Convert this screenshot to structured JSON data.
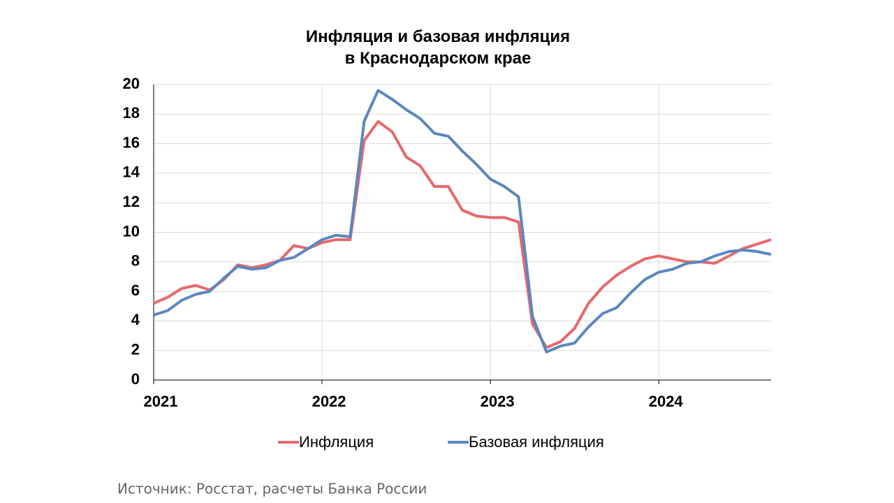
{
  "chart_data": {
    "type": "line",
    "title": "Инфляция и базовая инфляция в Краснодарском крае",
    "source": "Источник: Росстат, расчеты Банка России",
    "x": [
      2021,
      2021.083,
      2021.167,
      2021.25,
      2021.333,
      2021.417,
      2021.5,
      2021.583,
      2021.667,
      2021.75,
      2021.833,
      2021.917,
      2022,
      2022.083,
      2022.167,
      2022.25,
      2022.333,
      2022.417,
      2022.5,
      2022.583,
      2022.667,
      2022.75,
      2022.833,
      2022.917,
      2023,
      2023.083,
      2023.167,
      2023.25,
      2023.333,
      2023.417,
      2023.5,
      2023.583,
      2023.667,
      2023.75,
      2023.833,
      2023.917,
      2024,
      2024.083,
      2024.167,
      2024.25,
      2024.333,
      2024.417,
      2024.5,
      2024.583,
      2024.667
    ],
    "series": [
      {
        "name": "Инфляция",
        "color": "#e8686b",
        "values": [
          5.2,
          5.6,
          6.2,
          6.4,
          6.1,
          6.8,
          7.8,
          7.6,
          7.8,
          8.1,
          9.1,
          8.9,
          9.3,
          9.5,
          9.5,
          16.2,
          17.5,
          16.8,
          15.1,
          14.5,
          13.1,
          13.1,
          11.5,
          11.1,
          11.0,
          11.0,
          10.7,
          3.8,
          2.2,
          2.6,
          3.5,
          5.2,
          6.3,
          7.1,
          7.7,
          8.2,
          8.4,
          8.2,
          8.0,
          8.0,
          7.9,
          8.4,
          8.9,
          9.2,
          9.5
        ]
      },
      {
        "name": "Базовая инфляция",
        "color": "#5b87bf",
        "values": [
          4.4,
          4.7,
          5.4,
          5.8,
          6.0,
          6.9,
          7.7,
          7.5,
          7.6,
          8.1,
          8.3,
          8.9,
          9.5,
          9.8,
          9.7,
          17.5,
          19.6,
          19.0,
          18.3,
          17.7,
          16.7,
          16.5,
          15.5,
          14.6,
          13.6,
          13.1,
          12.4,
          4.3,
          1.9,
          2.3,
          2.5,
          3.6,
          4.5,
          4.9,
          5.9,
          6.8,
          7.3,
          7.5,
          7.9,
          8.0,
          8.4,
          8.7,
          8.8,
          8.7,
          8.5
        ]
      }
    ],
    "xlim": [
      2021,
      2024.667
    ],
    "xticks": [
      2021,
      2022,
      2023,
      2024
    ],
    "ylim": [
      0,
      20
    ],
    "yticks": [
      0,
      2,
      4,
      6,
      8,
      10,
      12,
      14,
      16,
      18,
      20
    ],
    "grid": true,
    "legend": "bottom"
  }
}
